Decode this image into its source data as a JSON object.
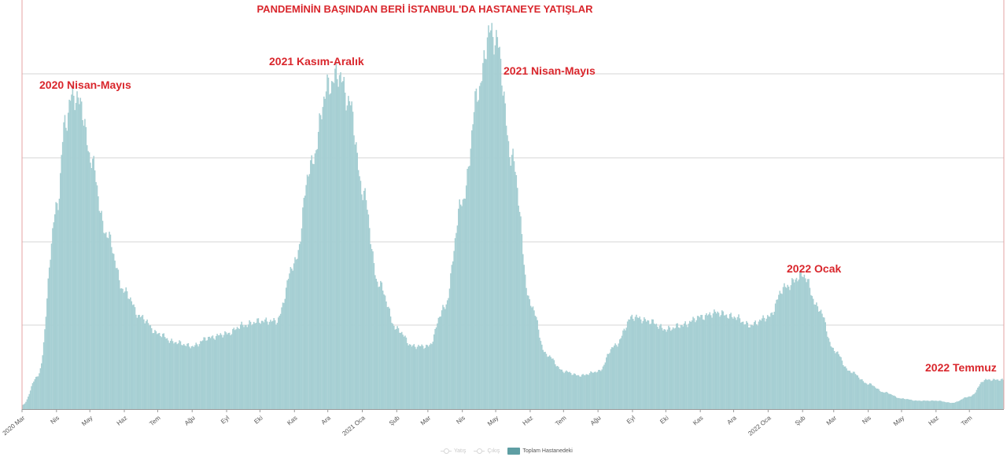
{
  "chart_data": {
    "type": "bar",
    "title": "PANDEMİNİN BAŞINDAN BERİ İSTANBUL'DA HASTANEYE YATIŞLAR",
    "xlabel": "",
    "ylabel": "",
    "grid": true,
    "legend": {
      "placement": "bottom-center",
      "items": [
        {
          "label": "Yatış",
          "active": false
        },
        {
          "label": "Çıkış",
          "active": false
        },
        {
          "label": "Toplam Hastanedeki",
          "active": true
        }
      ]
    },
    "x_ticks": [
      "2020 Mar",
      "Nis",
      "May",
      "Haz",
      "Tem",
      "Ağu",
      "Eyl",
      "Eki",
      "Kas",
      "Ara",
      "2021 Oca",
      "Şub",
      "Mar",
      "Nis",
      "May",
      "Haz",
      "Tem",
      "Ağu",
      "Eyl",
      "Eki",
      "Kas",
      "Ara",
      "2022 Oca",
      "Şub",
      "Mar",
      "Nis",
      "May",
      "Haz",
      "Tem"
    ],
    "series": [
      {
        "name": "Toplam Hastanedeki",
        "color": "#a6cfd3",
        "note": "relative values on a 0–100 scale (y-axis unlabeled), sampled semi-monthly",
        "points": [
          [
            "2020-03-01",
            1
          ],
          [
            "2020-03-15",
            8
          ],
          [
            "2020-04-01",
            48
          ],
          [
            "2020-04-08",
            68
          ],
          [
            "2020-04-15",
            75
          ],
          [
            "2020-04-22",
            73
          ],
          [
            "2020-05-01",
            60
          ],
          [
            "2020-05-15",
            42
          ],
          [
            "2020-06-01",
            28
          ],
          [
            "2020-06-15",
            22
          ],
          [
            "2020-07-01",
            18
          ],
          [
            "2020-07-15",
            16
          ],
          [
            "2020-08-01",
            15
          ],
          [
            "2020-08-15",
            17
          ],
          [
            "2020-09-01",
            18
          ],
          [
            "2020-09-15",
            20
          ],
          [
            "2020-10-01",
            21
          ],
          [
            "2020-10-15",
            21
          ],
          [
            "2020-11-01",
            35
          ],
          [
            "2020-11-15",
            58
          ],
          [
            "2020-12-01",
            77
          ],
          [
            "2020-12-10",
            80
          ],
          [
            "2020-12-20",
            73
          ],
          [
            "2021-01-01",
            52
          ],
          [
            "2021-01-15",
            30
          ],
          [
            "2021-02-01",
            19
          ],
          [
            "2021-02-15",
            15
          ],
          [
            "2021-03-01",
            15
          ],
          [
            "2021-03-15",
            24
          ],
          [
            "2021-04-01",
            50
          ],
          [
            "2021-04-15",
            76
          ],
          [
            "2021-04-25",
            90
          ],
          [
            "2021-05-01",
            88
          ],
          [
            "2021-05-15",
            60
          ],
          [
            "2021-06-01",
            25
          ],
          [
            "2021-06-15",
            13
          ],
          [
            "2021-07-01",
            9
          ],
          [
            "2021-07-15",
            8
          ],
          [
            "2021-08-01",
            9
          ],
          [
            "2021-08-15",
            15
          ],
          [
            "2021-09-01",
            22
          ],
          [
            "2021-09-15",
            21
          ],
          [
            "2021-10-01",
            19
          ],
          [
            "2021-10-15",
            20
          ],
          [
            "2021-11-01",
            22
          ],
          [
            "2021-11-15",
            23
          ],
          [
            "2021-12-01",
            22
          ],
          [
            "2021-12-15",
            20
          ],
          [
            "2022-01-01",
            22
          ],
          [
            "2022-01-15",
            29
          ],
          [
            "2022-02-01",
            32
          ],
          [
            "2022-02-15",
            24
          ],
          [
            "2022-03-01",
            14
          ],
          [
            "2022-03-15",
            9
          ],
          [
            "2022-04-01",
            6
          ],
          [
            "2022-04-15",
            4
          ],
          [
            "2022-05-01",
            2.5
          ],
          [
            "2022-05-15",
            2
          ],
          [
            "2022-06-01",
            2
          ],
          [
            "2022-06-15",
            1.5
          ],
          [
            "2022-07-01",
            3
          ],
          [
            "2022-07-15",
            7
          ]
        ]
      }
    ],
    "annotations": [
      {
        "text": "2020 Nisan-Mayıs",
        "date": "2020-04-15"
      },
      {
        "text": "2021 Kasım-Aralık",
        "date": "2020-12-10"
      },
      {
        "text": "2021 Nisan-Mayıs",
        "date": "2021-05-01"
      },
      {
        "text": "2022 Ocak",
        "date": "2022-02-01"
      },
      {
        "text": "2022 Temmuz",
        "date": "2022-07-20"
      }
    ]
  }
}
